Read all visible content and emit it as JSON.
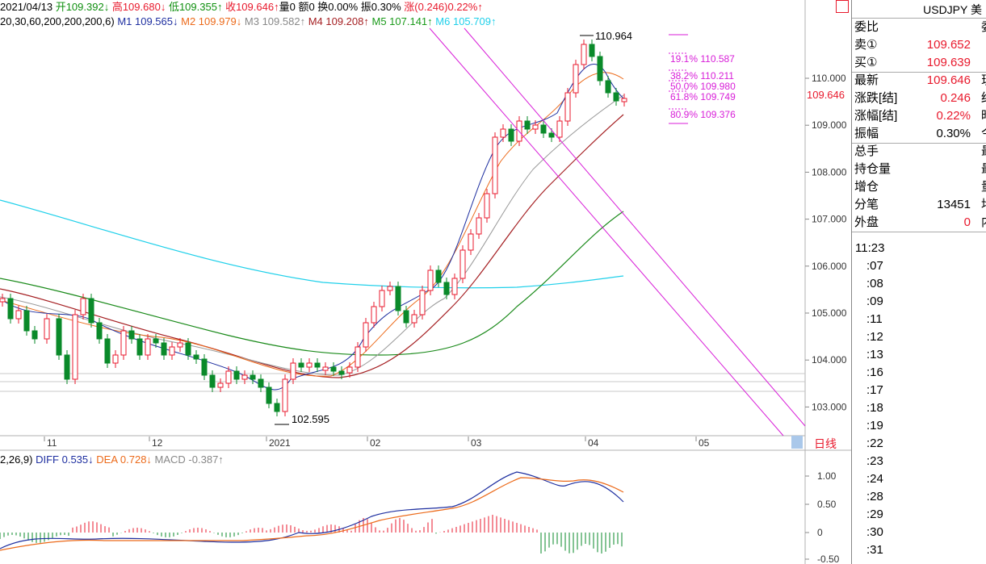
{
  "info": {
    "date": "2021/04/13",
    "open": "开109.392↓",
    "high": "高109.680↓",
    "low": "低109.355↑",
    "close": "收109.646↑",
    "volume": "量0",
    "amount": "额0",
    "change_pct": "换0.00%",
    "amplitude": "振0.30%",
    "rise": "涨(0.246)0.22%↑"
  },
  "ma": {
    "params": "20,30,60,200,200,200,6)",
    "m1": "M1 109.565↓",
    "m2": "M2 109.979↓",
    "m3": "M3 109.582↑",
    "m4": "M4 109.208↑",
    "m5": "M5 107.141↑",
    "m6": "M6 105.709↑"
  },
  "macd": {
    "params": "2,26,9)",
    "diff": "DIFF 0.535↓",
    "dea": "DEA 0.728↓",
    "macd": "MACD -0.387↑"
  },
  "chart_labels": {
    "high_mark": "110.964",
    "low_mark": "102.595",
    "current_price": "109.646"
  },
  "fib": [
    "19.1% 110.587",
    "38.2% 110.211",
    "50.0% 109.980",
    "61.8% 109.749",
    "80.9% 109.376"
  ],
  "price_ticks": [
    "110.000",
    "109.000",
    "108.000",
    "107.000",
    "106.000",
    "105.000",
    "104.000",
    "103.000"
  ],
  "macd_ticks": [
    "1.00",
    "0.50",
    "0",
    "-0.50"
  ],
  "time_ticks": [
    "11",
    "12",
    "2021",
    "02",
    "03",
    "04",
    "05"
  ],
  "day_button": "日线",
  "panel": {
    "symbol": "USDJPY 美",
    "rows": [
      {
        "label": "委比",
        "value": "",
        "tail": "委"
      },
      {
        "label": "卖①",
        "value": "109.652",
        "tail": ""
      },
      {
        "label": "买①",
        "value": "109.639",
        "tail": ""
      },
      {
        "label": "最新",
        "value": "109.646",
        "tail": "现"
      },
      {
        "label": "涨跌[结]",
        "value": "0.246",
        "tail": "结"
      },
      {
        "label": "涨幅[结]",
        "value": "0.22%",
        "tail": "昨"
      },
      {
        "label": "振幅",
        "value": "0.30%",
        "tail": "今"
      },
      {
        "label": "总手",
        "value": "",
        "tail": "最"
      },
      {
        "label": "持仓量",
        "value": "",
        "tail": "最"
      },
      {
        "label": "增仓",
        "value": "",
        "tail": "量"
      },
      {
        "label": "分笔",
        "value": "13451",
        "tail": "均"
      },
      {
        "label": "外盘",
        "value": "0",
        "tail": "内"
      }
    ],
    "ticks": [
      "11:23",
      ":07",
      ":08",
      ":09",
      ":11",
      ":12",
      ":13",
      ":16",
      ":17",
      ":18",
      ":19",
      ":22",
      ":23",
      ":24",
      ":28",
      ":29",
      ":30",
      ":31"
    ]
  },
  "colors": {
    "up": "#e8192c",
    "down": "#0a8a2a",
    "m1": "#1e2fa0",
    "m2": "#ec6a1a",
    "m3": "#999999",
    "m4": "#a51f22",
    "m5": "#1a8a1a",
    "m6": "#1fd0ea",
    "fib": "#d81ed8"
  }
}
